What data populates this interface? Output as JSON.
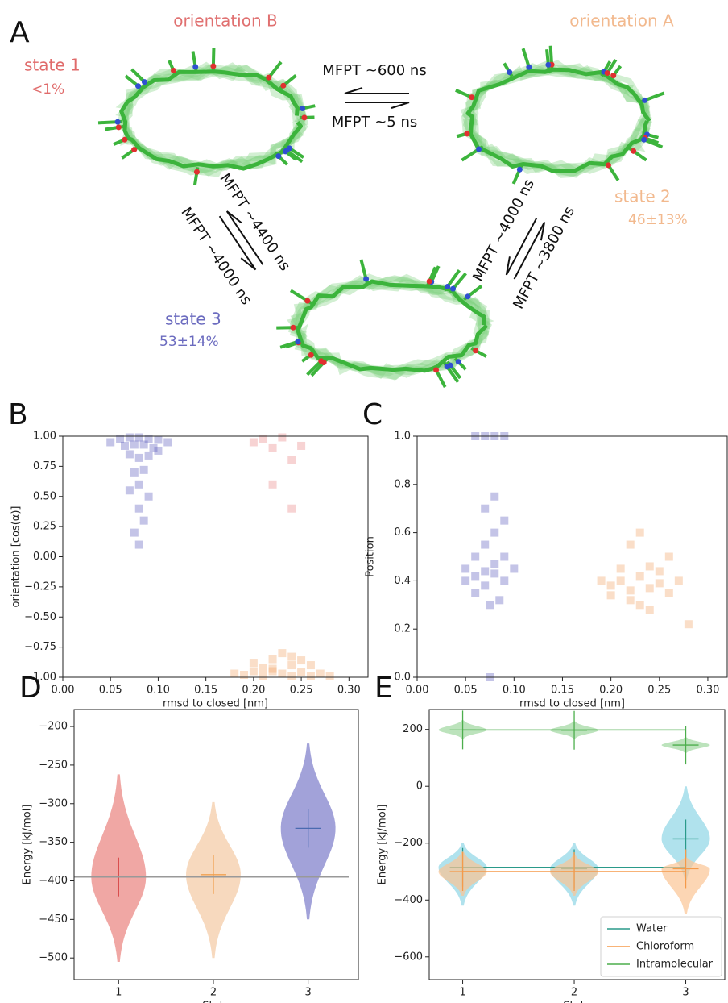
{
  "diagram": {
    "label": "A",
    "orientation_b": "orientation B",
    "orientation_a": "orientation A",
    "state_1": "state 1",
    "state_1_pop": "<1%",
    "state_2": "state 2",
    "state_2_pop": "46±13%",
    "state_3": "state 3",
    "state_3_pop": "53±14%",
    "mfpt_2_to_1": "MFPT ~600 ns",
    "mfpt_1_to_2": "MFPT ~5 ns",
    "mfpt_3_to_1": "MFPT ~4400 ns",
    "mfpt_1_to_3": "MFPT ~4000 ns",
    "mfpt_3_to_2": "MFPT ~4000 ns",
    "mfpt_2_to_3": "MFPT ~3800 ns"
  },
  "chart_data": [
    {
      "type": "scatter",
      "label": "B",
      "xlabel": "rmsd to closed [nm]",
      "ylabel": "orientation [cos(α)]",
      "xlim": [
        0,
        0.32
      ],
      "ylim": [
        -1,
        1
      ],
      "xticks": [
        {
          "value": 0,
          "label": "0.00"
        },
        {
          "value": 0.05,
          "label": "0.05"
        },
        {
          "value": 0.1,
          "label": "0.10"
        },
        {
          "value": 0.15,
          "label": "0.15"
        },
        {
          "value": 0.2,
          "label": "0.20"
        },
        {
          "value": 0.25,
          "label": "0.25"
        },
        {
          "value": 0.3,
          "label": "0.30"
        }
      ],
      "yticks": [
        {
          "value": -1,
          "label": "−1.00"
        },
        {
          "value": -0.75,
          "label": "−0.75"
        },
        {
          "value": -0.5,
          "label": "−0.50"
        },
        {
          "value": -0.25,
          "label": "−0.25"
        },
        {
          "value": 0,
          "label": "0.00"
        },
        {
          "value": 0.25,
          "label": "0.25"
        },
        {
          "value": 0.5,
          "label": "0.50"
        },
        {
          "value": 0.75,
          "label": "0.75"
        },
        {
          "value": 1,
          "label": "1.00"
        }
      ],
      "series": [
        {
          "color": "#5555bb",
          "x": [
            0.06,
            0.07,
            0.08,
            0.09,
            0.1,
            0.065,
            0.075,
            0.085,
            0.095,
            0.07,
            0.08,
            0.09,
            0.075,
            0.085,
            0.08,
            0.07,
            0.09,
            0.08,
            0.085,
            0.075,
            0.08,
            0.1,
            0.11,
            0.05
          ],
          "y": [
            0.98,
            0.99,
            0.99,
            0.98,
            0.97,
            0.92,
            0.93,
            0.93,
            0.9,
            0.85,
            0.82,
            0.84,
            0.7,
            0.72,
            0.6,
            0.55,
            0.5,
            0.4,
            0.3,
            0.2,
            0.1,
            0.88,
            0.95,
            0.95
          ]
        },
        {
          "color": "#f0a060",
          "x": [
            0.19,
            0.2,
            0.21,
            0.22,
            0.23,
            0.24,
            0.25,
            0.26,
            0.27,
            0.2,
            0.22,
            0.24,
            0.26,
            0.21,
            0.23,
            0.25,
            0.18,
            0.28,
            0.22,
            0.24
          ],
          "y": [
            -0.98,
            -0.95,
            -0.99,
            -0.93,
            -0.97,
            -0.9,
            -0.96,
            -0.99,
            -0.97,
            -0.88,
            -0.85,
            -0.83,
            -0.9,
            -0.92,
            -0.8,
            -0.86,
            -0.97,
            -0.99,
            -0.95,
            -0.99
          ]
        },
        {
          "color": "#e88080",
          "x": [
            0.2,
            0.21,
            0.22,
            0.23,
            0.24,
            0.25,
            0.22,
            0.24
          ],
          "y": [
            0.95,
            0.98,
            0.9,
            0.99,
            0.8,
            0.92,
            0.6,
            0.4
          ]
        }
      ]
    },
    {
      "type": "scatter",
      "label": "C",
      "xlabel": "rmsd to closed [nm]",
      "ylabel": "Position",
      "xlim": [
        0,
        0.32
      ],
      "ylim": [
        0,
        1
      ],
      "xticks": [
        {
          "value": 0,
          "label": "0.00"
        },
        {
          "value": 0.05,
          "label": "0.05"
        },
        {
          "value": 0.1,
          "label": "0.10"
        },
        {
          "value": 0.15,
          "label": "0.15"
        },
        {
          "value": 0.2,
          "label": "0.20"
        },
        {
          "value": 0.25,
          "label": "0.25"
        },
        {
          "value": 0.3,
          "label": "0.30"
        }
      ],
      "yticks": [
        {
          "value": 0,
          "label": "0.0"
        },
        0.2,
        0.4,
        0.6,
        0.8,
        {
          "value": 1,
          "label": "1.0"
        }
      ],
      "series": [
        {
          "color": "#5555bb",
          "x": [
            0.06,
            0.07,
            0.08,
            0.09,
            0.07,
            0.08,
            0.06,
            0.09,
            0.1,
            0.05,
            0.07,
            0.08,
            0.09,
            0.07,
            0.08,
            0.06,
            0.075,
            0.085,
            0.06,
            0.07,
            0.08,
            0.09,
            0.05,
            0.075
          ],
          "y": [
            0.42,
            0.44,
            0.43,
            0.4,
            0.38,
            0.47,
            0.5,
            0.5,
            0.45,
            0.4,
            0.55,
            0.6,
            0.65,
            0.7,
            0.75,
            0.35,
            0.3,
            0.32,
            1.0,
            1.0,
            1.0,
            1.0,
            0.45,
            0.0
          ]
        },
        {
          "color": "#f0a060",
          "x": [
            0.2,
            0.21,
            0.22,
            0.23,
            0.24,
            0.25,
            0.26,
            0.27,
            0.21,
            0.22,
            0.23,
            0.24,
            0.25,
            0.2,
            0.19,
            0.26,
            0.22,
            0.24,
            0.28,
            0.23
          ],
          "y": [
            0.38,
            0.4,
            0.36,
            0.42,
            0.37,
            0.39,
            0.35,
            0.4,
            0.45,
            0.32,
            0.3,
            0.46,
            0.44,
            0.34,
            0.4,
            0.5,
            0.55,
            0.28,
            0.22,
            0.6
          ]
        }
      ]
    },
    {
      "type": "violin",
      "label": "D",
      "xlabel": "State",
      "ylabel": "Energy [kJ/mol]",
      "categories": [
        "1",
        "2",
        "3"
      ],
      "ylim": [
        -528,
        -178
      ],
      "yticks": [
        {
          "value": -500,
          "label": "−500"
        },
        {
          "value": -450,
          "label": "−450"
        },
        {
          "value": -400,
          "label": "−400"
        },
        {
          "value": -350,
          "label": "−350"
        },
        {
          "value": -300,
          "label": "−300"
        },
        {
          "value": -250,
          "label": "−250"
        },
        {
          "value": -200,
          "label": "−200"
        }
      ],
      "series": [
        {
          "color": [
            "#d84a4a",
            "#f0a050",
            "#4a6ab0"
          ],
          "fill": [
            "#e9817d",
            "#f4c9a3",
            "#7b7bc9"
          ],
          "values": [
            -395,
            -392,
            -332
          ],
          "min": [
            -505,
            -500,
            -450
          ],
          "max": [
            -262,
            -298,
            -222
          ],
          "reference_line": true
        }
      ]
    },
    {
      "type": "violin",
      "label": "E",
      "xlabel": "State",
      "ylabel": "Energy [kJ/mol]",
      "categories": [
        "1",
        "2",
        "3"
      ],
      "ylim": [
        -680,
        270
      ],
      "yticks": [
        {
          "value": -600,
          "label": "−600"
        },
        {
          "value": -400,
          "label": "−400"
        },
        {
          "value": -200,
          "label": "−200"
        },
        0,
        200
      ],
      "legend": "lower right",
      "series": [
        {
          "name": "Water",
          "color": "#2a9a8a",
          "fill": "#8fd6e6",
          "values": [
            -285,
            -290,
            -185
          ],
          "min": [
            -420,
            -420,
            -330
          ],
          "max": [
            -200,
            -200,
            0
          ],
          "reference_line": true
        },
        {
          "name": "Chloroform",
          "color": "#f59a4a",
          "fill": "#fbc594",
          "values": [
            -300,
            -300,
            -290
          ],
          "min": [
            -385,
            -385,
            -450
          ],
          "max": [
            -230,
            -240,
            -250
          ],
          "reference_line": true
        },
        {
          "name": "Intramolecular",
          "color": "#4cae4c",
          "fill": "#9fd79f",
          "values": [
            198,
            197,
            145
          ],
          "min": [
            168,
            168,
            118
          ],
          "max": [
            232,
            228,
            172
          ],
          "reference_line": true
        }
      ]
    }
  ]
}
